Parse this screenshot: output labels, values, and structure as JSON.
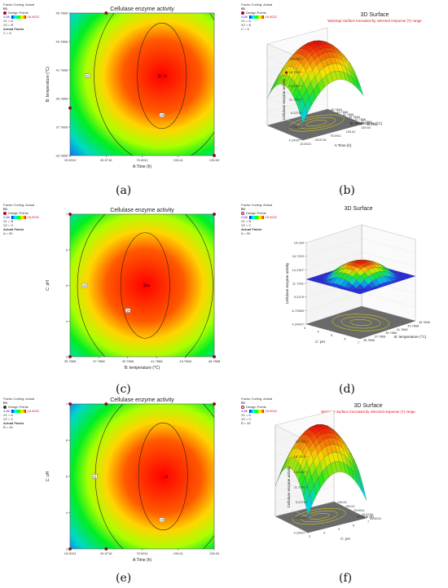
{
  "panel_labels": [
    "(a)",
    "(b)",
    "(c)",
    "(d)",
    "(e)",
    "(f)"
  ],
  "sidebars": [
    {
      "coding": "Factor Coding: Actual",
      "header": "R1",
      "points_label": "Design Points",
      "low": "4.68",
      "high": "16.9022",
      "x1": "X1 = A",
      "x2": "X2 = B",
      "actual_factor": "Actual Factor",
      "fixed": "C = 5",
      "marker": "filled"
    },
    {
      "coding": "Factor Coding: Actual",
      "header": "R1",
      "points_label": "Design Points",
      "low": "4.68",
      "high": "16.9022",
      "x1": "X1 = A",
      "x2": "X2 = B",
      "actual_factor": "",
      "fixed": "C = 5",
      "marker": "filled"
    },
    {
      "coding": "Factor Coding: Actual",
      "header": "R1",
      "points_label": "Design Points",
      "low": "4.68",
      "high": "16.9022",
      "x1": "X1 = B",
      "x2": "X2 = C",
      "actual_factor": "Actual Factor",
      "fixed": "A = 90",
      "marker": "filled"
    },
    {
      "coding": "Factor Coding: Actual",
      "header": "R1",
      "points_label": "Design Points",
      "low": "4.68",
      "high": "16.9022",
      "x1": "X1 = B",
      "x2": "X2 = C",
      "actual_factor": "Actual Factor",
      "fixed": "A = 90",
      "marker": "open"
    },
    {
      "coding": "Factor Coding: Actual",
      "header": "R1",
      "points_label": "Design Points",
      "low": "4.68",
      "high": "16.9022",
      "x1": "X1 = A",
      "x2": "X2 = C",
      "actual_factor": "Actual Factor",
      "fixed": "B = 40",
      "marker": "dark"
    },
    {
      "coding": "Factor Coding: Actual",
      "header": "R1",
      "points_label": "Design Points",
      "low": "4.68",
      "high": "16.9022",
      "x1": "X1 = A",
      "x2": "X2 = C",
      "actual_factor": "",
      "fixed": "B = 40",
      "marker": "open"
    }
  ],
  "chart_data": [
    {
      "type": "heatmap",
      "subtype": "contour",
      "title": "Cellulase enzyme activity",
      "xlabel": "A:Time (h)",
      "ylabel": "B: temperature (°C)",
      "xticks": [
        "15.5024",
        "45.5718",
        "75.5911",
        "105.61",
        "135.63"
      ],
      "yticks": [
        "33.7868",
        "37.7868",
        "39.7868",
        "41.7868",
        "43.7868",
        "45.7868"
      ],
      "xlim": [
        15.5024,
        135.63
      ],
      "ylim": [
        33.7868,
        45.7868
      ],
      "center": {
        "x": 92,
        "y": 40.5
      },
      "contours": [
        {
          "value": "",
          "label_pos": [
            40,
            44.5
          ]
        },
        {
          "value": "12",
          "label_pos": [
            30,
            40.5
          ]
        },
        {
          "value": "14",
          "label_pos": [
            92,
            37.2
          ]
        }
      ],
      "center_label": "16",
      "design_points": [
        {
          "x": 15.5024,
          "y": 37.7868
        },
        {
          "x": 45.5718,
          "y": 45.7868
        },
        {
          "x": 90,
          "y": 40.5
        },
        {
          "x": 135.63,
          "y": 33.7868
        }
      ],
      "grid": false
    },
    {
      "type": "surface",
      "title": "3D Surface",
      "warning": "Warning! Surface truncated by selected response (Y) range",
      "zlabel": "Cellulase enzyme activity",
      "xlabel": "A:Time (h)",
      "ylabel": "B: temperature (°C)",
      "zticks": [
        "4.24427",
        "6.72589",
        "9.2275",
        "11.7291",
        "14.2307",
        "16.7323",
        "19.234"
      ],
      "xticks": [
        "15.5024",
        "45.5718",
        "75.5911",
        "105.61",
        "135.63"
      ],
      "yticks": [
        "33.7868",
        "35.7868",
        "37.7868",
        "39.7868",
        "41.7868",
        "43.7868",
        "45.7868"
      ],
      "xlim": [
        15.5024,
        135.63
      ],
      "ylim": [
        33.7868,
        45.7868
      ],
      "zlim": [
        4.24427,
        19.234
      ]
    },
    {
      "type": "heatmap",
      "subtype": "contour",
      "title": "Cellulase enzyme activity",
      "xlabel": "B: temperature (°C)",
      "ylabel": "C: pH",
      "xticks": [
        "35.7868",
        "37.7868",
        "39.7868",
        "41.7868",
        "43.7868",
        "45.7868"
      ],
      "yticks": [
        "3",
        "4",
        "5",
        "6",
        "7"
      ],
      "xlim": [
        35.7868,
        45.7868
      ],
      "ylim": [
        3,
        7
      ],
      "center": {
        "x": 41,
        "y": 5
      },
      "contours": [
        {
          "value": "12",
          "label_pos": [
            36.8,
            5
          ]
        },
        {
          "value": "14",
          "label_pos": [
            39.8,
            4.3
          ]
        }
      ],
      "center_label": "16",
      "design_points": [
        {
          "x": 35.7868,
          "y": 7
        },
        {
          "x": 45.7868,
          "y": 7
        },
        {
          "x": 35.7868,
          "y": 3
        },
        {
          "x": 45.7868,
          "y": 3
        },
        {
          "x": 41,
          "y": 5
        }
      ],
      "grid": false
    },
    {
      "type": "surface",
      "title": "3D Surface",
      "warning": "",
      "zlabel": "Cellulase enzyme activity",
      "xlabel": "C: pH",
      "ylabel": "B: temperature (°C)",
      "zticks": [
        "4.24427",
        "6.72589",
        "9.2275",
        "11.7291",
        "14.2307",
        "16.7323",
        "19.234"
      ],
      "xticks": [
        "3",
        "4",
        "5",
        "6",
        "7"
      ],
      "yticks": [
        "35.7868",
        "37.7868",
        "39.7868",
        "41.7868",
        "43.7868",
        "45.7868"
      ],
      "xlim": [
        3,
        7
      ],
      "ylim": [
        35.7868,
        45.7868
      ],
      "zlim": [
        4.24427,
        19.234
      ]
    },
    {
      "type": "heatmap",
      "subtype": "contour",
      "title": "Cellulase enzyme activity",
      "xlabel": "A:Time (h)",
      "ylabel": "C: pH",
      "xticks": [
        "15.5024",
        "45.5718",
        "75.5911",
        "105.61",
        "135.63"
      ],
      "yticks": [
        "3",
        "4",
        "5",
        "6",
        "7"
      ],
      "xlim": [
        15.5024,
        135.63
      ],
      "ylim": [
        3,
        7
      ],
      "center": {
        "x": 93,
        "y": 5
      },
      "contours": [
        {
          "value": "",
          "label_pos": [
            20,
            6.4
          ]
        },
        {
          "value": "12",
          "label_pos": [
            36,
            5
          ]
        },
        {
          "value": "14",
          "label_pos": [
            92,
            3.8
          ]
        }
      ],
      "center_label": "16",
      "design_points": [
        {
          "x": 15.5024,
          "y": 3
        },
        {
          "x": 15.5024,
          "y": 7
        },
        {
          "x": 45.5718,
          "y": 7
        },
        {
          "x": 135.63,
          "y": 7
        },
        {
          "x": 45.5718,
          "y": 3
        }
      ],
      "grid": false
    },
    {
      "type": "surface",
      "title": "3D Surface",
      "warning": "Warning! Surface truncated by selected response (Y) range",
      "zlabel": "Cellulase enzyme activity",
      "xlabel": "C: pH",
      "ylabel": "A:Time (h)",
      "zticks": [
        "4.24427",
        "6.72589",
        "9.2275",
        "11.7291",
        "14.2307",
        "16.7323",
        "19.234"
      ],
      "xticks": [
        "3",
        "4",
        "5",
        "6",
        "7"
      ],
      "yticks": [
        "15.5024",
        "45.5718",
        "75.5911",
        "105.61",
        "135.63"
      ],
      "xlim": [
        3,
        7
      ],
      "ylim": [
        15.5024,
        135.63
      ],
      "zlim": [
        4.24427,
        19.234
      ]
    }
  ]
}
